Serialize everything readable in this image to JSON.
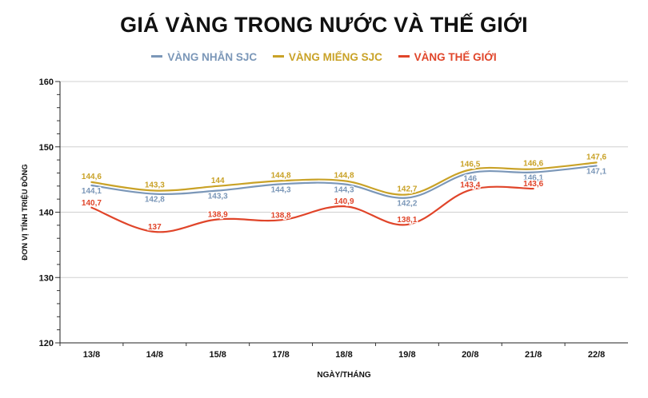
{
  "chart_data": {
    "type": "line",
    "title": "GIÁ VÀNG TRONG NƯỚC VÀ THẾ GIỚI",
    "xlabel": "NGÀY/THÁNG",
    "ylabel": "ĐƠN VỊ TÍNH TRIỆU ĐỒNG",
    "ylim": [
      120,
      160
    ],
    "yticks": [
      "120",
      "130",
      "140",
      "150",
      "160"
    ],
    "grid": "horizontal",
    "legend_position": "top-center",
    "categories": [
      "13/8",
      "14/8",
      "15/8",
      "17/8",
      "18/8",
      "19/8",
      "20/8",
      "21/8",
      "22/8"
    ],
    "series": [
      {
        "name": "VÀNG NHẪN SJC",
        "color": "#7b97b8",
        "values": [
          144.1,
          142.8,
          143.3,
          144.3,
          144.3,
          142.2,
          146,
          146.1,
          147.1
        ],
        "labels": [
          "144,1",
          "142,8",
          "143,3",
          "144,3",
          "144,3",
          "142,2",
          "146",
          "146,1",
          "147,1"
        ]
      },
      {
        "name": "VÀNG MIẾNG SJC",
        "color": "#c9a227",
        "values": [
          144.6,
          143.3,
          144,
          144.8,
          144.8,
          142.7,
          146.5,
          146.6,
          147.6
        ],
        "labels": [
          "144,6",
          "143,3",
          "144",
          "144,8",
          "144,8",
          "142,7",
          "146,5",
          "146,6",
          "147,6"
        ]
      },
      {
        "name": "VÀNG THẾ GIỚI",
        "color": "#e0452a",
        "values": [
          140.7,
          137,
          138.9,
          138.8,
          140.9,
          138.1,
          143.4,
          143.6,
          null
        ],
        "labels": [
          "140,7",
          "137",
          "138,9",
          "138,8",
          "140,9",
          "138,1",
          "143,4",
          "143,6",
          ""
        ]
      }
    ]
  }
}
